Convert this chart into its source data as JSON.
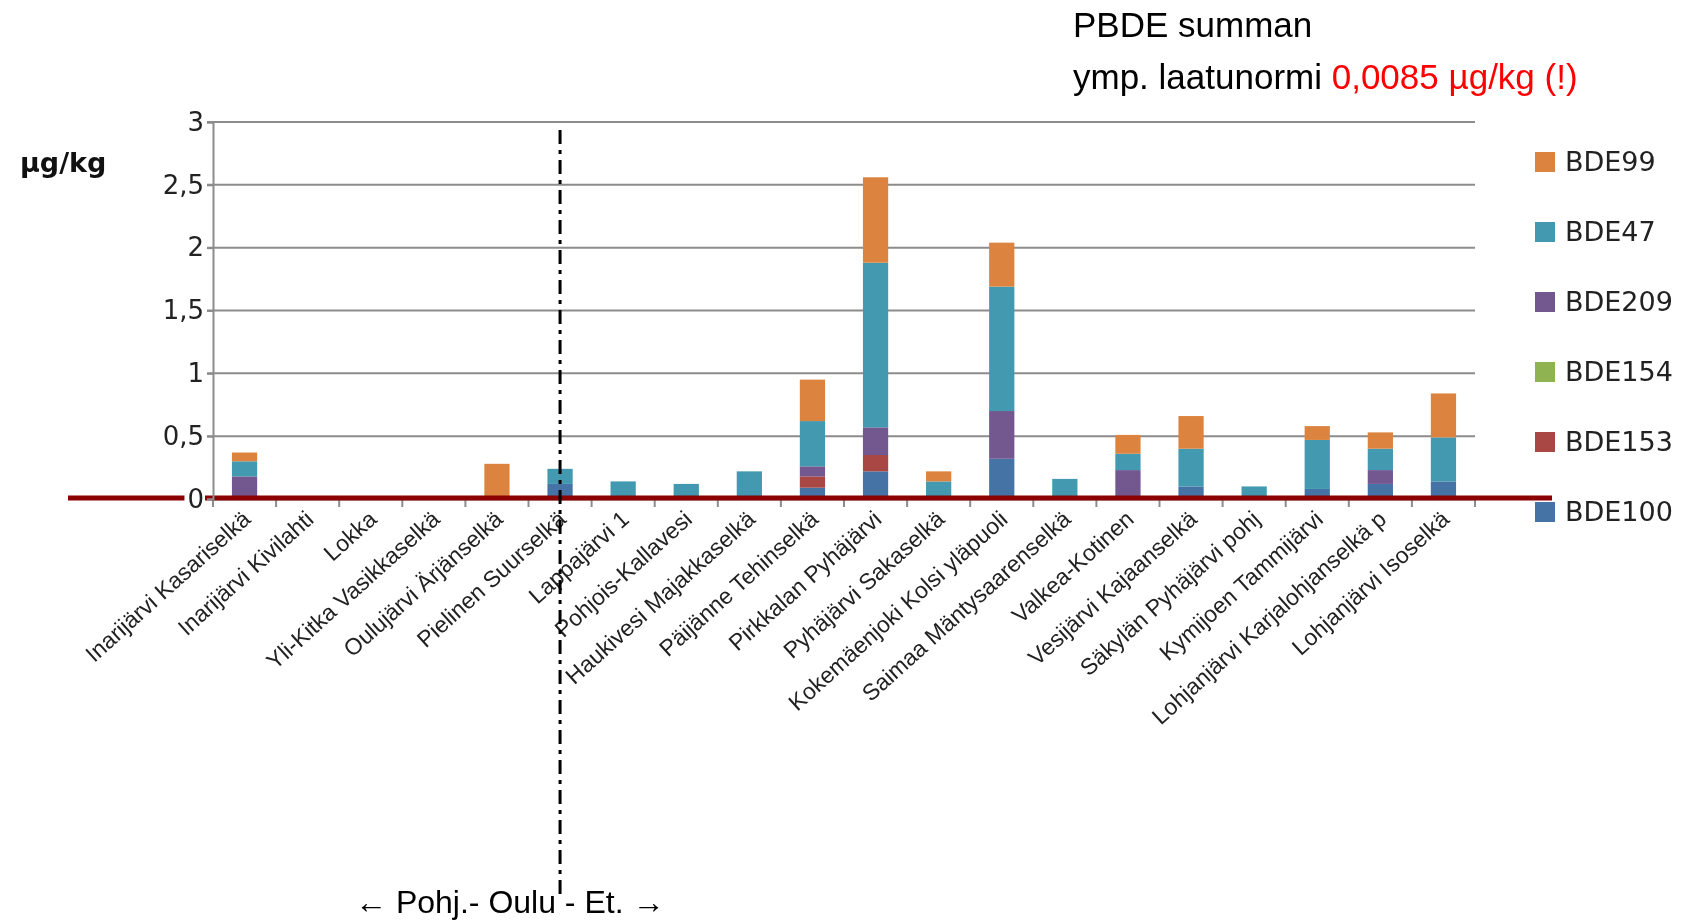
{
  "chart_data": {
    "type": "bar",
    "stacked": true,
    "ylabel": "µg/kg",
    "categories": [
      "Inarijärvi Kasariselkä",
      "Inarijärvi Kivilahti",
      "Lokka",
      "Yli-Kitka Vasikkaselkä",
      "Oulujärvi Ärjänselkä",
      "Pielinen Suurselkä",
      "Lappajärvi 1",
      "Pohjois-Kallavesi",
      "Haukivesi Majakkaselkä",
      "Päijänne Tehinselkä",
      "Pirkkalan Pyhäjärvi",
      "Pyhäjärvi Sakaselkä",
      "Kokemäenjoki Kolsi yläpuoli",
      "Saimaa Mäntysaarenselkä",
      "Valkea-Kotinen",
      "Vesijärvi Kajaanselkä",
      "Säkylän Pyhäjärvi pohj",
      "Kymijoen Tammijärvi",
      "Lohjanjärvi Karjalohjanselkä p",
      "Lohjanjärvi Isoselkä"
    ],
    "series": [
      {
        "name": "BDE100",
        "color": "#4673a6",
        "values": [
          null,
          0,
          0,
          0,
          0,
          0.12,
          0,
          0,
          0,
          0.09,
          0.22,
          0,
          0.32,
          0,
          0,
          0.1,
          0,
          0.08,
          0.12,
          0.14
        ]
      },
      {
        "name": "BDE153",
        "color": "#a84744",
        "values": [
          0,
          0,
          0,
          0,
          0,
          0,
          0,
          0,
          0,
          0.09,
          0.13,
          0,
          0,
          0,
          0,
          0,
          0,
          0,
          0,
          0
        ]
      },
      {
        "name": "BDE154",
        "color": "#8fb351",
        "values": [
          0,
          0,
          0,
          0,
          0,
          0,
          0,
          0,
          0,
          0,
          0,
          0,
          0,
          0,
          0,
          0,
          0,
          0,
          0,
          0
        ]
      },
      {
        "name": "BDE209",
        "color": "#72588f",
        "values": [
          0.18,
          0,
          0,
          0,
          0,
          0,
          0,
          0,
          0,
          0.08,
          0.22,
          0,
          0.38,
          0,
          0.23,
          0,
          0,
          0,
          0.11,
          0
        ]
      },
      {
        "name": "BDE47",
        "color": "#4399b0",
        "values": [
          0.12,
          0,
          0,
          null,
          null,
          0.12,
          0.14,
          0.12,
          0.22,
          0.36,
          1.31,
          0.14,
          0.99,
          0.16,
          0.13,
          0.3,
          0.1,
          0.39,
          0.17,
          0.35
        ]
      },
      {
        "name": "BDE99",
        "color": "#dc843f",
        "values": [
          0.07,
          null,
          0,
          0,
          0.28,
          0,
          0,
          0,
          0,
          0.33,
          0.68,
          0.08,
          0.35,
          0,
          0.15,
          0.26,
          0,
          0.11,
          0.13,
          0.35
        ]
      }
    ],
    "ylim": [
      0,
      3
    ],
    "yticks": [
      0,
      {
        "value": 0.5,
        "label": "0,5"
      },
      1,
      {
        "value": 1.5,
        "label": "1,5"
      },
      2,
      {
        "value": 2.5,
        "label": "2,5"
      },
      3
    ],
    "grid": "y",
    "legend": "right",
    "ref_lines": [
      {
        "axis": "y",
        "value": 0.0085,
        "color": "#8b0000",
        "line_style": "solid"
      },
      {
        "axis": "x",
        "value": "Pielinen Suurselkä",
        "color": "#000000",
        "line_style": "dashed"
      }
    ],
    "annotations": [
      "PBDE summan",
      "ymp. laatunormi",
      "0,0085 µg/kg (!)",
      "← Pohj.- Oulu - Et. →"
    ]
  }
}
